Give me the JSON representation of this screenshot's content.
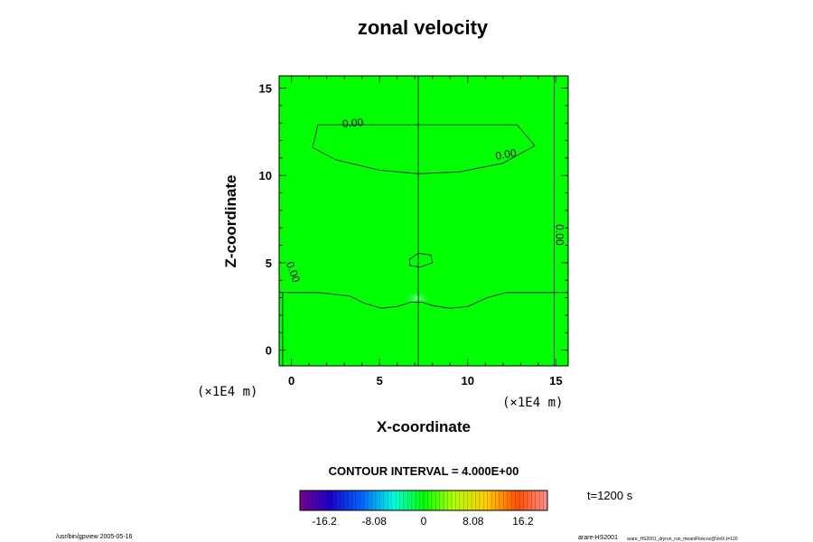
{
  "chart_data": {
    "type": "heatmap",
    "title": "zonal velocity",
    "xlabel": "X-coordinate",
    "ylabel": "Z-coordinate",
    "x_unit": "(×1E4 m)",
    "y_unit": "(×1E4 m)",
    "xlim": [
      -0.7,
      15.7
    ],
    "ylim": [
      -0.9,
      15.7
    ],
    "x_ticks": [
      0,
      5,
      10,
      15
    ],
    "y_ticks": [
      0,
      5,
      10,
      15
    ],
    "x_tick_labels": [
      "0",
      "5",
      "10",
      "15"
    ],
    "y_tick_labels": [
      "0",
      "5",
      "10",
      "15"
    ],
    "field_color": "#00ff00",
    "contour_interval_text": "CONTOUR INTERVAL = 4.000E+00",
    "contour_labels": [
      "0.00",
      "0.00",
      "0.00",
      "0.00"
    ],
    "contours": [
      {
        "name": "upper",
        "points": [
          [
            1.5,
            12.9
          ],
          [
            5,
            12.9
          ],
          [
            7.2,
            12.9
          ],
          [
            10,
            12.9
          ],
          [
            12.8,
            12.9
          ],
          [
            13.8,
            11.7
          ],
          [
            12,
            10.7
          ],
          [
            9.5,
            10.2
          ],
          [
            7.2,
            10.1
          ],
          [
            5,
            10.3
          ],
          [
            2.5,
            10.9
          ],
          [
            1.2,
            11.6
          ],
          [
            1.5,
            12.9
          ]
        ]
      },
      {
        "name": "low-layer",
        "points": [
          [
            -0.7,
            3.3
          ],
          [
            1.5,
            3.3
          ],
          [
            3.3,
            3.1
          ],
          [
            4.1,
            2.7
          ],
          [
            5.1,
            2.4
          ],
          [
            6,
            2.5
          ],
          [
            6.8,
            2.75
          ],
          [
            7.4,
            2.75
          ],
          [
            8,
            2.55
          ],
          [
            9,
            2.4
          ],
          [
            10,
            2.5
          ],
          [
            11.1,
            3
          ],
          [
            12.2,
            3.3
          ],
          [
            13.5,
            3.3
          ],
          [
            15.7,
            3.3
          ]
        ]
      },
      {
        "name": "small-loop",
        "points": [
          [
            6.7,
            5.2
          ],
          [
            7.2,
            5.55
          ],
          [
            7.9,
            5.45
          ],
          [
            8,
            5.0
          ],
          [
            7.3,
            4.75
          ],
          [
            6.7,
            4.85
          ],
          [
            6.7,
            5.2
          ]
        ]
      },
      {
        "name": "center-line",
        "points": [
          [
            7.2,
            15.7
          ],
          [
            7.2,
            -0.9
          ]
        ]
      },
      {
        "name": "right-line",
        "points": [
          [
            14.9,
            15.7
          ],
          [
            14.9,
            -0.9
          ]
        ]
      },
      {
        "name": "left-line",
        "points": [
          [
            -0.5,
            3.3
          ],
          [
            -0.5,
            -0.9
          ]
        ]
      }
    ],
    "colorbar": {
      "tick_labels": [
        "-16.2",
        "-8.08",
        "0",
        "8.08",
        "16.2"
      ],
      "tick_values": [
        -16.2,
        -8.08,
        0,
        8.08,
        16.2
      ],
      "range": [
        -20.2,
        20.2
      ]
    },
    "time_label": "t=1200 s"
  },
  "footer": {
    "left": "/usr/bin/gpview 2005-05-16",
    "right_main": "arare-HS2001",
    "right_small": "arare_HS2001_dryrun_run_mean/Flow.nc@VelX,t=120"
  }
}
